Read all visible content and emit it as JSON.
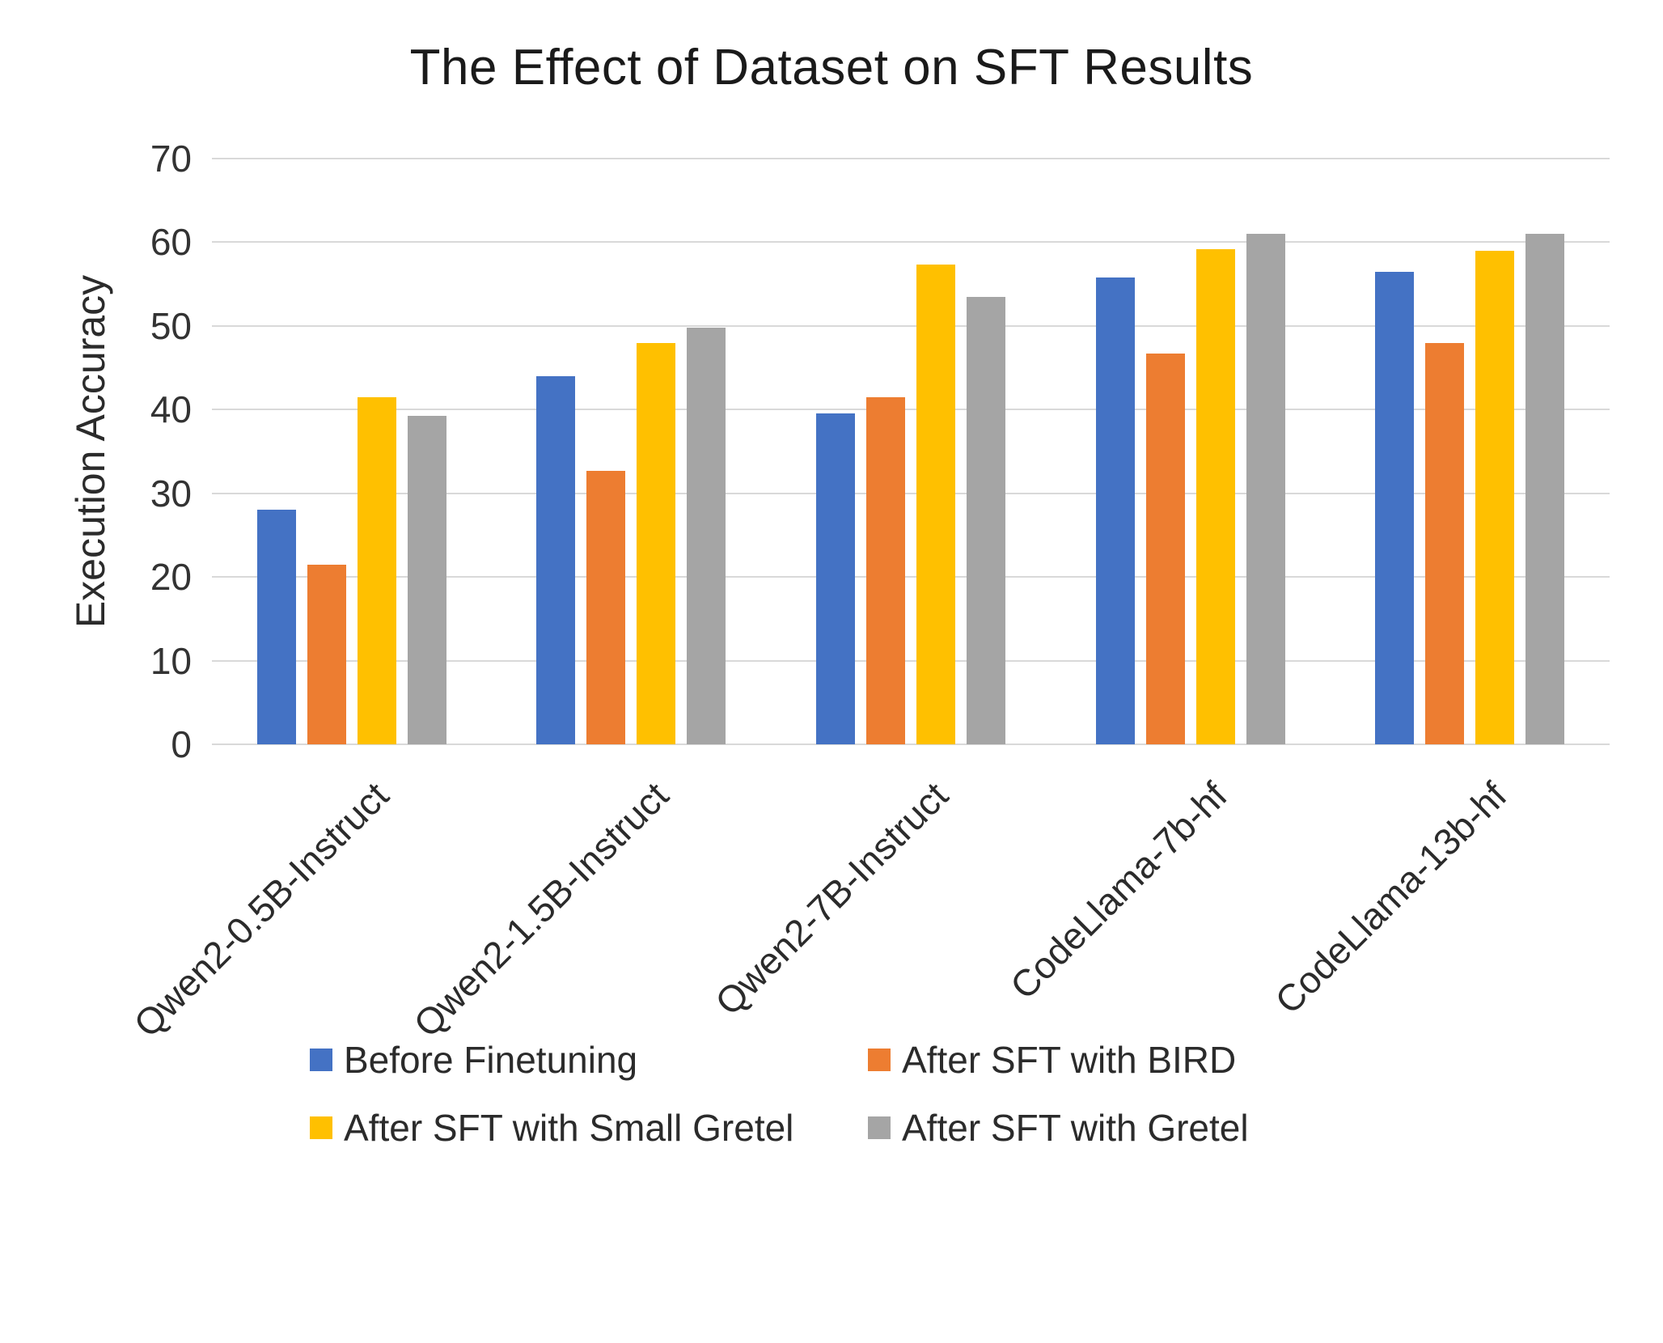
{
  "chart_data": {
    "type": "bar",
    "title": "The Effect of Dataset on SFT Results",
    "xlabel": "",
    "ylabel": "Execution Accuracy",
    "ylim": [
      0,
      70
    ],
    "ytick_step": 10,
    "grid": true,
    "legend_position": "bottom",
    "categories": [
      "Qwen2-0.5B-Instruct",
      "Qwen2-1.5B-Instruct",
      "Qwen2-7B-Instruct",
      "CodeLlama-7b-hf",
      "CodeLlama-13b-hf"
    ],
    "series": [
      {
        "name": "Before Finetuning",
        "color": "#4472C4",
        "values": [
          28.0,
          44.0,
          39.5,
          55.8,
          56.5
        ]
      },
      {
        "name": "After SFT with BIRD",
        "color": "#ED7D31",
        "values": [
          21.5,
          32.7,
          41.5,
          46.7,
          48.0
        ]
      },
      {
        "name": "After SFT with Small Gretel",
        "color": "#FFC000",
        "values": [
          41.5,
          48.0,
          57.3,
          59.2,
          59.0
        ]
      },
      {
        "name": "After SFT with Gretel",
        "color": "#A5A5A5",
        "values": [
          39.3,
          49.8,
          53.5,
          61.0,
          61.0
        ]
      }
    ]
  }
}
